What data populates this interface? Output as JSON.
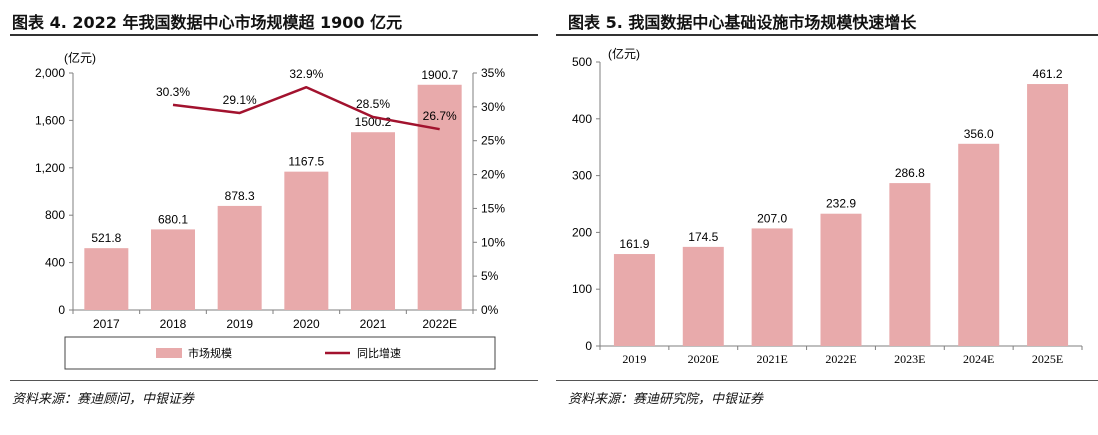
{
  "charts": [
    {
      "title": "图表 4. 2022 年我国数据中心市场规模超 1900 亿元",
      "source": "资料来源：赛迪顾问，中银证券"
    },
    {
      "title": "图表 5. 我国数据中心基础设施市场规模快速增长",
      "source": "资料来源：赛迪研究院，中银证券"
    }
  ],
  "colors": {
    "bar": "#e8aaab",
    "line": "#a2122e",
    "axis": "#7f7f7f"
  },
  "chart_data": [
    {
      "type": "bar",
      "categories": [
        "2017",
        "2018",
        "2019",
        "2020",
        "2021",
        "2022E"
      ],
      "unit_label": "(亿元)",
      "series": [
        {
          "name": "市场规模",
          "type": "bar",
          "axis": "left",
          "values": [
            521.8,
            680.1,
            878.3,
            1167.5,
            1500.2,
            1900.7
          ],
          "labels": [
            "521.8",
            "680.1",
            "878.3",
            "1167.5",
            "1500.2",
            "1900.7"
          ]
        },
        {
          "name": "同比增速",
          "type": "line",
          "axis": "right",
          "values": [
            null,
            30.3,
            29.1,
            32.9,
            28.5,
            26.7
          ],
          "labels": [
            "",
            "30.3%",
            "29.1%",
            "32.9%",
            "28.5%",
            "26.7%"
          ]
        }
      ],
      "ylim": [
        0,
        2000
      ],
      "yticks": [
        "0",
        "400",
        "800",
        "1,200",
        "1,600",
        "2,000"
      ],
      "y2lim": [
        0,
        35
      ],
      "y2ticks": [
        "0%",
        "5%",
        "10%",
        "15%",
        "20%",
        "25%",
        "30%",
        "35%"
      ],
      "legend_position": "bottom",
      "grid": false
    },
    {
      "type": "bar",
      "categories": [
        "2019",
        "2020E",
        "2021E",
        "2022E",
        "2023E",
        "2024E",
        "2025E"
      ],
      "unit_label": "(亿元)",
      "series": [
        {
          "values": [
            161.9,
            174.5,
            207.0,
            232.9,
            286.8,
            356.0,
            461.2
          ],
          "labels": [
            "161.9",
            "174.5",
            "207.0",
            "232.9",
            "286.8",
            "356.0",
            "461.2"
          ]
        }
      ],
      "ylim": [
        0,
        500
      ],
      "yticks": [
        "0",
        "100",
        "200",
        "300",
        "400",
        "500"
      ],
      "legend_position": "none",
      "grid": false
    }
  ]
}
